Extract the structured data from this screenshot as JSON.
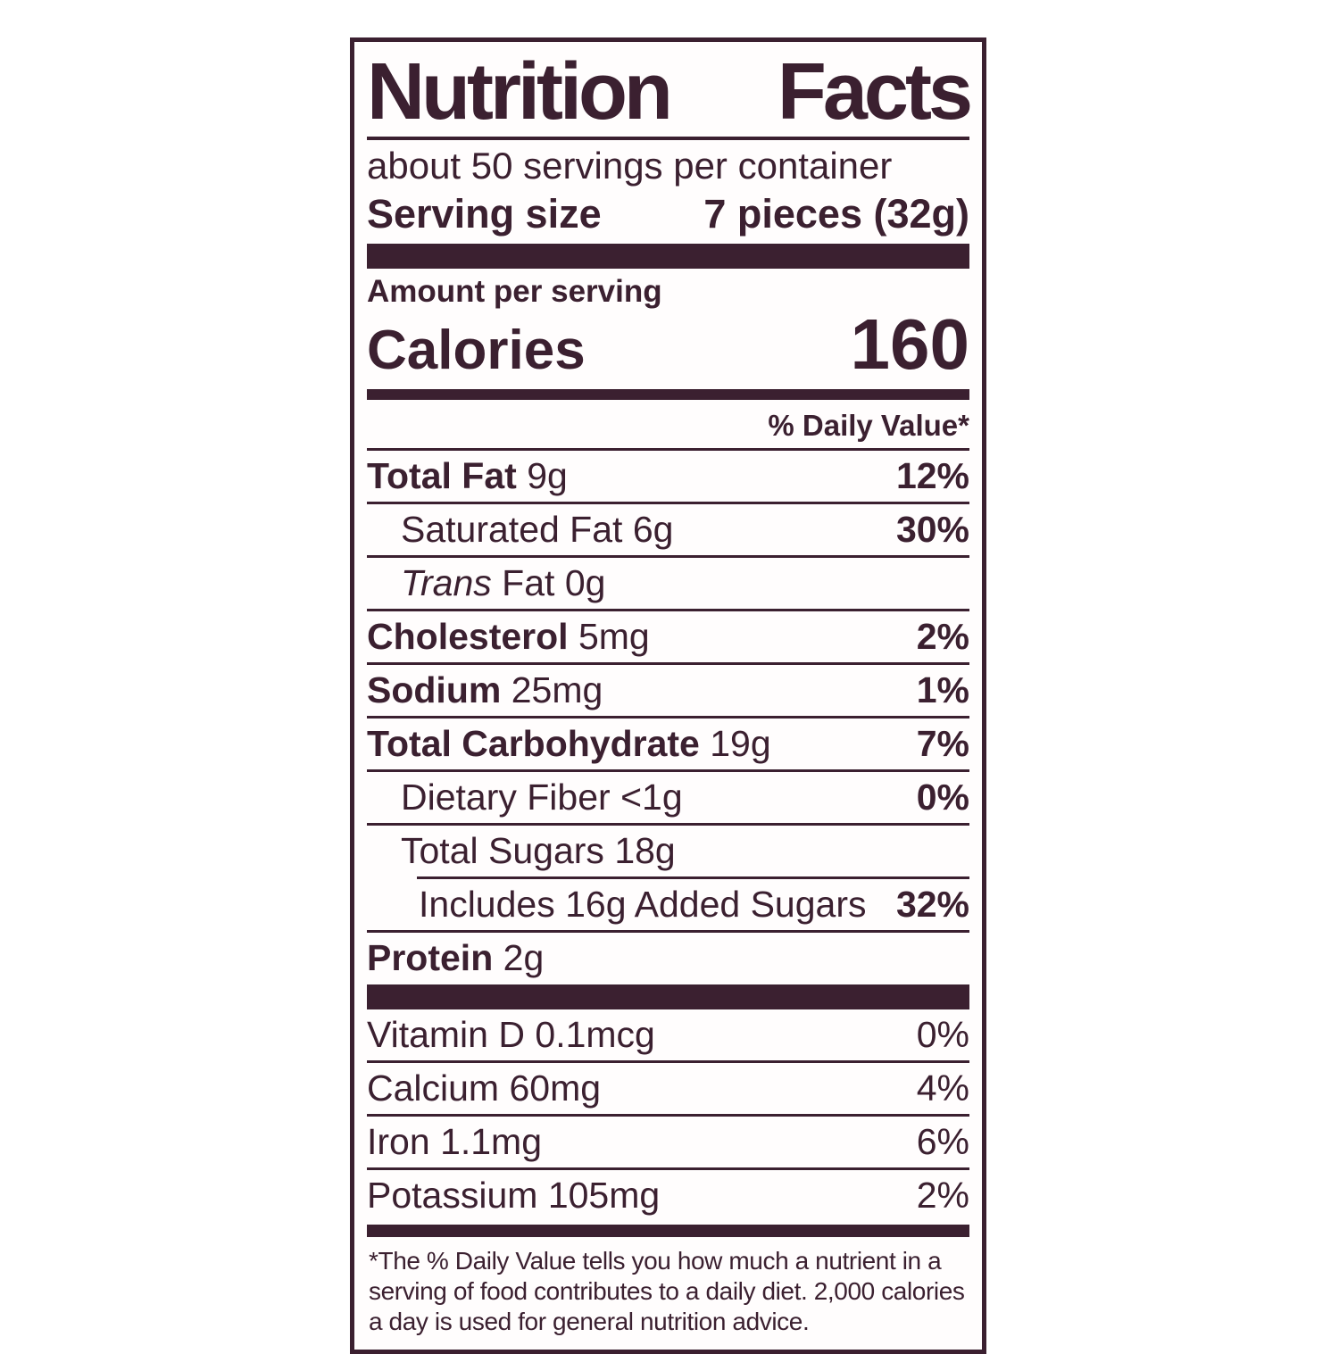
{
  "ink_color": "#3b2030",
  "label": {
    "title": "Nutrition Facts",
    "servings_per_container": "about 50 servings per container",
    "serving_size_label": "Serving size",
    "serving_size_value": "7 pieces (32g)",
    "amount_per_serving": "Amount per serving",
    "calories_label": "Calories",
    "calories_value": "160",
    "daily_value_header": "% Daily Value*",
    "nutrients": [
      {
        "name": "Total Fat",
        "amount": "9g",
        "dv": "12%"
      },
      {
        "name": "Saturated Fat",
        "amount": "6g",
        "dv": "30%"
      },
      {
        "name_italic": "Trans",
        "name": "Fat",
        "amount": "0g",
        "dv": ""
      },
      {
        "name": "Cholesterol",
        "amount": "5mg",
        "dv": "2%"
      },
      {
        "name": "Sodium",
        "amount": "25mg",
        "dv": "1%"
      },
      {
        "name": "Total Carbohydrate",
        "amount": "19g",
        "dv": "7%"
      },
      {
        "name": "Dietary Fiber",
        "amount": "<1g",
        "dv": "0%"
      },
      {
        "name": "Total Sugars",
        "amount": "18g",
        "dv": ""
      },
      {
        "name": "Includes 16g Added Sugars",
        "amount": "",
        "dv": "32%"
      },
      {
        "name": "Protein",
        "amount": "2g",
        "dv": ""
      }
    ],
    "micronutrients": [
      {
        "name": "Vitamin D",
        "amount": "0.1mcg",
        "dv": "0%"
      },
      {
        "name": "Calcium",
        "amount": "60mg",
        "dv": "4%"
      },
      {
        "name": "Iron",
        "amount": "1.1mg",
        "dv": "6%"
      },
      {
        "name": "Potassium",
        "amount": "105mg",
        "dv": "2%"
      }
    ],
    "footnote": "*The % Daily Value tells you how much a nutrient in a serving of food contributes to a daily diet. 2,000 calories a day is used for general nutrition advice."
  }
}
